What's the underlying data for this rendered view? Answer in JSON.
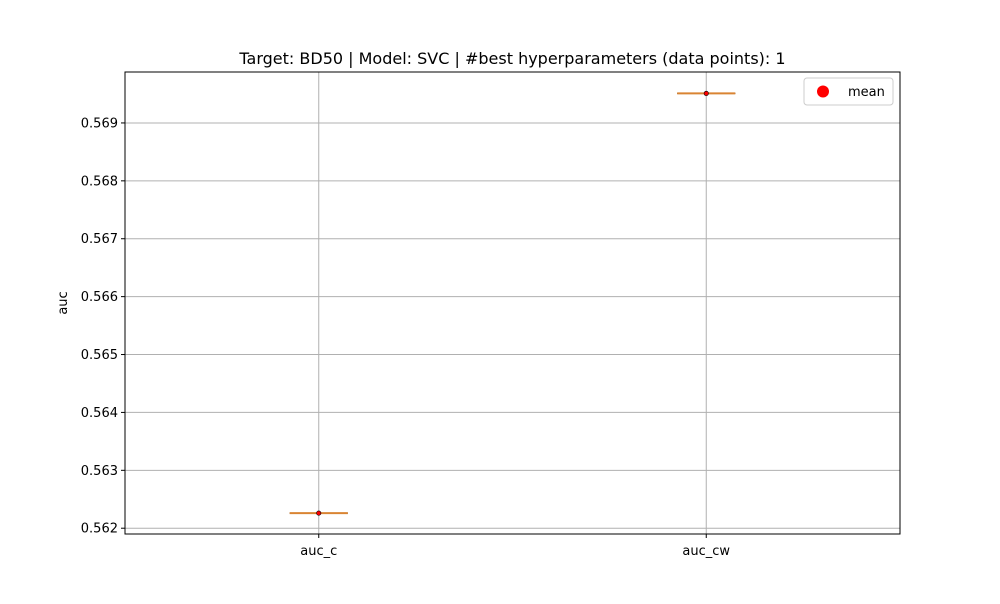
{
  "chart_data": {
    "type": "box",
    "title": "Target: BD50 | Model: SVC | #best hyperparameters (data points): 1",
    "xlabel": "",
    "ylabel": "auc",
    "categories": [
      "auc_c",
      "auc_cw"
    ],
    "series": [
      {
        "values": [
          0.56226,
          0.56951
        ]
      }
    ],
    "mean_series": {
      "name": "mean",
      "values": [
        0.56226,
        0.56951
      ]
    },
    "ylim": [
      0.5619,
      0.56988
    ],
    "y_ticks": [
      "0.562",
      "0.563",
      "0.564",
      "0.565",
      "0.566",
      "0.567",
      "0.568",
      "0.569"
    ],
    "grid": true,
    "legend_position": "upper right",
    "colors": {
      "median": "#d98433",
      "mean_marker": "#ff0000",
      "grid": "#b0b0b0",
      "axes": "#000000"
    }
  }
}
